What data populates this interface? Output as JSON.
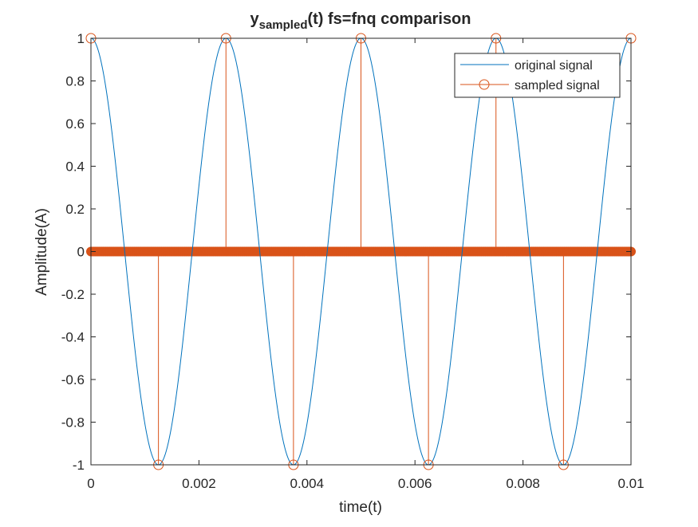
{
  "chart_data": {
    "type": "line",
    "title": {
      "main": "y",
      "subscript": "sampled",
      "rest": "(t) fs=fnq comparison"
    },
    "xlabel": "time(t)",
    "ylabel": "Amplitude(A)",
    "xlim": [
      0,
      0.01
    ],
    "ylim": [
      -1,
      1
    ],
    "x_ticks": [
      0,
      0.002,
      0.004,
      0.006,
      0.008,
      0.01
    ],
    "x_tick_labels": [
      "0",
      "0.002",
      "0.004",
      "0.006",
      "0.008",
      "0.01"
    ],
    "y_ticks": [
      -1,
      -0.8,
      -0.6,
      -0.4,
      -0.2,
      0,
      0.2,
      0.4,
      0.6,
      0.8,
      1
    ],
    "y_tick_labels": [
      "-1",
      "-0.8",
      "-0.6",
      "-0.4",
      "-0.2",
      "0",
      "0.2",
      "0.4",
      "0.6",
      "0.8",
      "1"
    ],
    "grid": false,
    "legend_position": "top-right",
    "series": [
      {
        "name": "original signal",
        "style": "line",
        "color": "#0072BD",
        "function": "cos(2*pi*400*t)",
        "frequency": 400
      },
      {
        "name": "sampled signal",
        "style": "stem",
        "color": "#D95319",
        "x": [
          0,
          0.00125,
          0.0025,
          0.00375,
          0.005,
          0.00625,
          0.0075,
          0.00875,
          0.01
        ],
        "values": [
          1,
          -1,
          1,
          -1,
          1,
          -1,
          1,
          -1,
          1
        ]
      }
    ]
  }
}
